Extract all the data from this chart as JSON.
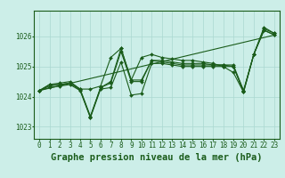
{
  "title": "Graphe pression niveau de la mer (hPa)",
  "xlabel_hours": [
    0,
    1,
    2,
    3,
    4,
    5,
    6,
    7,
    8,
    9,
    10,
    11,
    12,
    13,
    14,
    15,
    16,
    17,
    18,
    19,
    20,
    21,
    22,
    23
  ],
  "ylim": [
    1022.6,
    1026.85
  ],
  "yticks": [
    1023,
    1024,
    1025,
    1026
  ],
  "background_color": "#cceee8",
  "grid_color": "#aad8d0",
  "line_color": "#1a5c1a",
  "series": [
    [
      1024.2,
      1024.3,
      1024.35,
      1024.4,
      1024.2,
      1023.3,
      1024.25,
      1024.3,
      1025.15,
      1024.05,
      1024.1,
      1025.1,
      1025.1,
      1025.05,
      1025.0,
      1025.0,
      1025.0,
      1025.0,
      1025.0,
      1024.8,
      1024.15,
      1025.4,
      1026.2,
      1026.05
    ],
    [
      1024.2,
      1024.35,
      1024.4,
      1024.45,
      1024.22,
      1023.32,
      1024.3,
      1024.45,
      1025.5,
      1024.5,
      1024.5,
      1025.2,
      1025.15,
      1025.1,
      1025.05,
      1025.05,
      1025.05,
      1025.05,
      1025.05,
      1025.0,
      1024.15,
      1025.4,
      1026.2,
      1026.05
    ],
    [
      1024.2,
      1024.4,
      1024.4,
      1024.45,
      1024.25,
      1023.35,
      1024.3,
      1024.5,
      1025.6,
      1024.55,
      1024.55,
      1025.2,
      1025.2,
      1025.15,
      1025.1,
      1025.1,
      1025.1,
      1025.05,
      1025.05,
      1025.05,
      1024.2,
      1025.4,
      1026.25,
      1026.1
    ],
    [
      1024.2,
      1024.4,
      1024.45,
      1024.5,
      1024.25,
      1024.25,
      1024.35,
      1025.3,
      1025.6,
      1024.55,
      1025.3,
      1025.4,
      1025.3,
      1025.25,
      1025.2,
      1025.2,
      1025.15,
      1025.1,
      1025.0,
      1025.0,
      1024.2,
      1025.4,
      1026.3,
      1026.1
    ]
  ],
  "smooth_series": [
    1024.2,
    1024.28,
    1024.36,
    1024.44,
    1024.52,
    1024.6,
    1024.68,
    1024.76,
    1024.84,
    1024.92,
    1025.0,
    1025.08,
    1025.16,
    1025.24,
    1025.32,
    1025.4,
    1025.48,
    1025.56,
    1025.64,
    1025.72,
    1025.8,
    1025.88,
    1025.96,
    1026.04
  ],
  "marker_style": "D",
  "marker_size": 2.0,
  "line_width": 0.8,
  "title_fontsize": 7.5,
  "tick_fontsize": 5.5
}
